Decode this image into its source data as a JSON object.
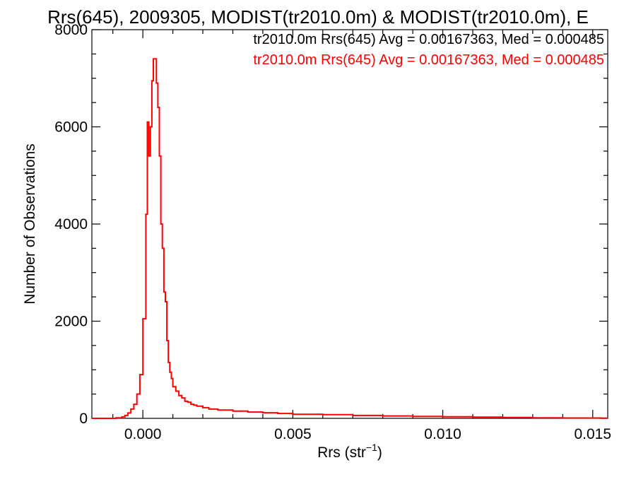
{
  "chart_data": {
    "type": "histogram",
    "title": "Rrs(645), 2009305, MODIST(tr2010.0m) & MODIST(tr2010.0m), E",
    "xlabel_main": "Rrs (str",
    "xlabel_sup": "−1",
    "xlabel_close": ")",
    "ylabel": "Number of Observations",
    "xlim": [
      -0.0017,
      0.0155
    ],
    "ylim": [
      0,
      8000
    ],
    "xticks": [
      0.0,
      0.005,
      0.01,
      0.015
    ],
    "xtick_labels": [
      "0.000",
      "0.005",
      "0.010",
      "0.015"
    ],
    "yticks": [
      0,
      2000,
      4000,
      6000,
      8000
    ],
    "ytick_labels": [
      "0",
      "2000",
      "4000",
      "6000",
      "8000"
    ],
    "legend": [
      {
        "text": "tr2010.0m Rrs(645) Avg = 0.00167363, Med = 0.000485",
        "color": "#000000"
      },
      {
        "text": "tr2010.0m Rrs(645) Avg = 0.00167363, Med = 0.000485",
        "color": "#ff0000"
      }
    ],
    "series": [
      {
        "color": "#ff0000",
        "x": [
          -0.0017,
          -0.0009,
          -0.0007,
          -0.0006,
          -0.0005,
          -0.0004,
          -0.0003,
          -0.0002,
          -0.0001,
          0.0,
          0.0001,
          0.00015,
          0.0002,
          0.00025,
          0.0003,
          0.00035,
          0.0004,
          0.00045,
          0.0005,
          0.00055,
          0.0006,
          0.00065,
          0.0007,
          0.00075,
          0.0008,
          0.00085,
          0.0009,
          0.00095,
          0.001,
          0.0011,
          0.0012,
          0.0013,
          0.0014,
          0.0015,
          0.0016,
          0.0017,
          0.0018,
          0.002,
          0.0022,
          0.0025,
          0.003,
          0.0035,
          0.004,
          0.0045,
          0.005,
          0.006,
          0.007,
          0.008,
          0.009,
          0.01,
          0.011,
          0.012,
          0.013,
          0.014,
          0.0153
        ],
        "y": [
          0,
          10,
          30,
          60,
          110,
          190,
          290,
          500,
          900,
          2050,
          4200,
          6100,
          5400,
          6000,
          6950,
          7400,
          7400,
          6900,
          6400,
          5400,
          4000,
          3500,
          2600,
          2400,
          1600,
          1150,
          950,
          820,
          650,
          560,
          470,
          420,
          350,
          330,
          290,
          270,
          250,
          220,
          190,
          170,
          150,
          130,
          115,
          100,
          85,
          75,
          60,
          50,
          40,
          32,
          25,
          18,
          12,
          8,
          5
        ]
      }
    ],
    "grid": false
  }
}
